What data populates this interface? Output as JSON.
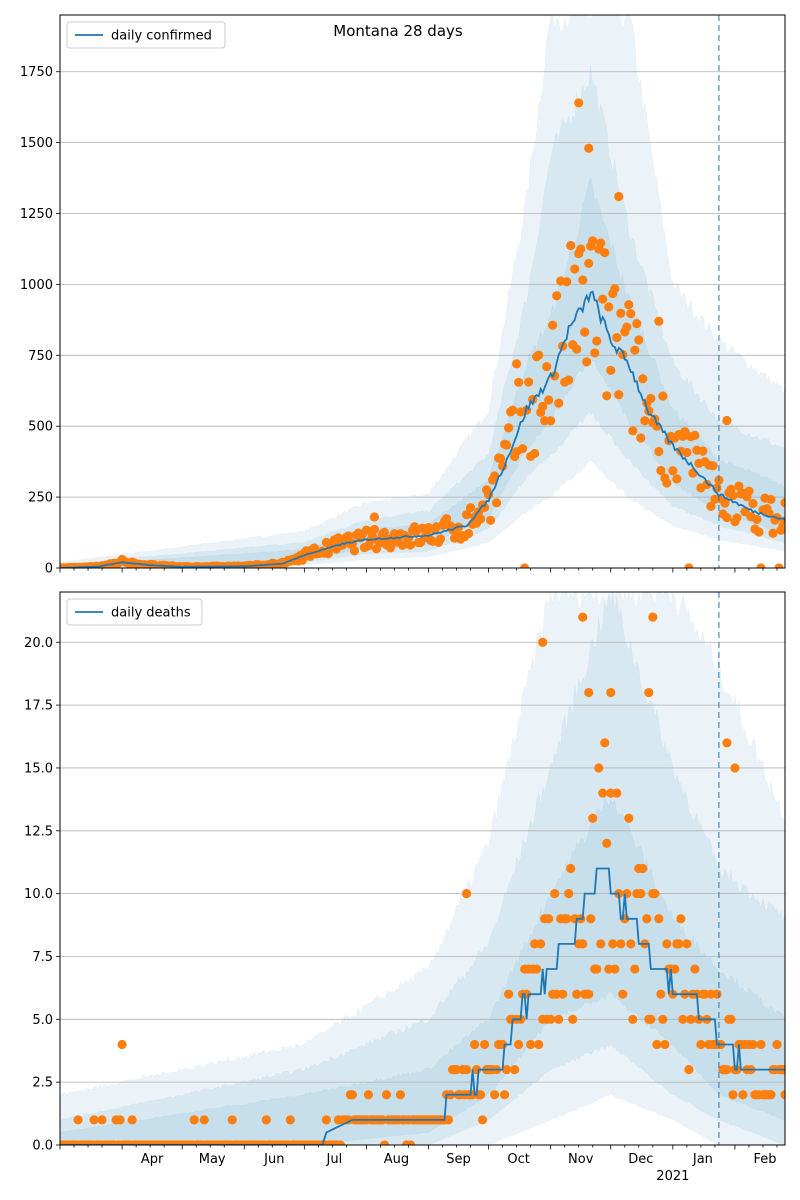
{
  "title": "Montana 28 days",
  "colors": {
    "line": "#1f77b4",
    "points": "#ff7f0e",
    "band": "#1f77b4",
    "grid": "#b0b0b0"
  },
  "x_axis": {
    "start_date": "2020-03-01",
    "end_date": "2021-02-26",
    "month_ticks": [
      {
        "date": "2020-04-01",
        "label": "Apr"
      },
      {
        "date": "2020-05-01",
        "label": "May"
      },
      {
        "date": "2020-06-01",
        "label": "Jun"
      },
      {
        "date": "2020-07-01",
        "label": "Jul"
      },
      {
        "date": "2020-08-01",
        "label": "Aug"
      },
      {
        "date": "2020-09-01",
        "label": "Sep"
      },
      {
        "date": "2020-10-01",
        "label": "Oct"
      },
      {
        "date": "2020-11-01",
        "label": "Nov"
      },
      {
        "date": "2020-12-01",
        "label": "Dec"
      },
      {
        "date": "2021-01-01",
        "label": "Jan"
      },
      {
        "date": "2021-02-01",
        "label": "Feb"
      }
    ],
    "year_label": "2021",
    "forecast_start": "2021-01-24"
  },
  "chart_data": [
    {
      "type": "line",
      "name": "confirmed",
      "legend": "daily confirmed",
      "legend_position": "upper-left",
      "ylim": [
        0,
        1950
      ],
      "yticks": [
        0,
        250,
        500,
        750,
        1000,
        1250,
        1500,
        1750
      ],
      "grid": "y",
      "line_series": [
        {
          "date": "2020-03-01",
          "value": 0
        },
        {
          "date": "2020-03-20",
          "value": 5
        },
        {
          "date": "2020-04-01",
          "value": 20
        },
        {
          "date": "2020-04-15",
          "value": 10
        },
        {
          "date": "2020-05-01",
          "value": 4
        },
        {
          "date": "2020-06-01",
          "value": 6
        },
        {
          "date": "2020-06-20",
          "value": 15
        },
        {
          "date": "2020-07-01",
          "value": 45
        },
        {
          "date": "2020-07-20",
          "value": 85
        },
        {
          "date": "2020-08-01",
          "value": 100
        },
        {
          "date": "2020-08-20",
          "value": 110
        },
        {
          "date": "2020-09-01",
          "value": 115
        },
        {
          "date": "2020-09-20",
          "value": 150
        },
        {
          "date": "2020-10-01",
          "value": 240
        },
        {
          "date": "2020-10-10",
          "value": 380
        },
        {
          "date": "2020-10-20",
          "value": 560
        },
        {
          "date": "2020-11-01",
          "value": 670
        },
        {
          "date": "2020-11-10",
          "value": 840
        },
        {
          "date": "2020-11-18",
          "value": 930
        },
        {
          "date": "2020-11-21",
          "value": 975
        },
        {
          "date": "2020-12-01",
          "value": 800
        },
        {
          "date": "2020-12-10",
          "value": 720
        },
        {
          "date": "2020-12-20",
          "value": 550
        },
        {
          "date": "2021-01-01",
          "value": 430
        },
        {
          "date": "2021-01-12",
          "value": 350
        },
        {
          "date": "2021-01-24",
          "value": 260
        },
        {
          "date": "2021-02-10",
          "value": 200
        },
        {
          "date": "2021-02-26",
          "value": 170
        }
      ],
      "band_levels": [
        {
          "opacity": 0.09,
          "series": [
            {
              "date": "2020-03-01",
              "lo": 0,
              "hi": 20
            },
            {
              "date": "2020-07-01",
              "lo": 10,
              "hi": 130
            },
            {
              "date": "2020-08-01",
              "lo": 30,
              "hi": 230
            },
            {
              "date": "2020-09-01",
              "lo": 40,
              "hi": 260
            },
            {
              "date": "2020-10-01",
              "lo": 90,
              "hi": 560
            },
            {
              "date": "2020-10-20",
              "lo": 200,
              "hi": 1300
            },
            {
              "date": "2020-11-01",
              "lo": 250,
              "hi": 1950
            },
            {
              "date": "2020-11-21",
              "lo": 380,
              "hi": 1950
            },
            {
              "date": "2020-12-10",
              "lo": 250,
              "hi": 1950
            },
            {
              "date": "2021-01-01",
              "lo": 150,
              "hi": 1000
            },
            {
              "date": "2021-01-24",
              "lo": 100,
              "hi": 800
            },
            {
              "date": "2021-02-26",
              "lo": 60,
              "hi": 620
            }
          ]
        },
        {
          "opacity": 0.09,
          "series": [
            {
              "date": "2020-03-01",
              "lo": 0,
              "hi": 12
            },
            {
              "date": "2020-07-01",
              "lo": 20,
              "hi": 90
            },
            {
              "date": "2020-08-01",
              "lo": 50,
              "hi": 170
            },
            {
              "date": "2020-09-01",
              "lo": 60,
              "hi": 200
            },
            {
              "date": "2020-10-01",
              "lo": 140,
              "hi": 400
            },
            {
              "date": "2020-10-20",
              "lo": 320,
              "hi": 950
            },
            {
              "date": "2020-11-01",
              "lo": 400,
              "hi": 1450
            },
            {
              "date": "2020-11-21",
              "lo": 550,
              "hi": 1750
            },
            {
              "date": "2020-12-10",
              "lo": 380,
              "hi": 1200
            },
            {
              "date": "2021-01-01",
              "lo": 220,
              "hi": 720
            },
            {
              "date": "2021-01-24",
              "lo": 150,
              "hi": 520
            },
            {
              "date": "2021-02-26",
              "lo": 90,
              "hi": 420
            }
          ]
        },
        {
          "opacity": 0.09,
          "series": [
            {
              "date": "2020-03-01",
              "lo": 0,
              "hi": 8
            },
            {
              "date": "2020-07-01",
              "lo": 30,
              "hi": 65
            },
            {
              "date": "2020-08-01",
              "lo": 70,
              "hi": 135
            },
            {
              "date": "2020-09-01",
              "lo": 80,
              "hi": 155
            },
            {
              "date": "2020-10-01",
              "lo": 180,
              "hi": 310
            },
            {
              "date": "2020-10-20",
              "lo": 420,
              "hi": 720
            },
            {
              "date": "2020-11-01",
              "lo": 520,
              "hi": 880
            },
            {
              "date": "2020-11-21",
              "lo": 750,
              "hi": 1350
            },
            {
              "date": "2020-12-10",
              "lo": 520,
              "hi": 950
            },
            {
              "date": "2021-01-01",
              "lo": 300,
              "hi": 560
            },
            {
              "date": "2021-01-24",
              "lo": 200,
              "hi": 380
            },
            {
              "date": "2021-02-26",
              "lo": 120,
              "hi": 290
            }
          ]
        }
      ],
      "scatter_sample": [
        {
          "date": "2020-04-01",
          "value": 30
        },
        {
          "date": "2020-08-05",
          "value": 180
        },
        {
          "date": "2020-10-15",
          "value": 720
        },
        {
          "date": "2020-11-15",
          "value": 1640
        },
        {
          "date": "2020-11-20",
          "value": 1480
        },
        {
          "date": "2020-12-05",
          "value": 1310
        },
        {
          "date": "2020-12-25",
          "value": 870
        },
        {
          "date": "2021-01-28",
          "value": 520
        },
        {
          "date": "2021-02-26",
          "value": 230
        }
      ]
    },
    {
      "type": "line",
      "name": "deaths",
      "legend": "daily deaths",
      "legend_position": "upper-left",
      "ylim": [
        0,
        22
      ],
      "yticks": [
        "0.0",
        "2.5",
        "5.0",
        "7.5",
        "10.0",
        "12.5",
        "15.0",
        "17.5",
        "20.0"
      ],
      "grid": "y",
      "line_series": [
        {
          "date": "2020-03-01",
          "value": 0
        },
        {
          "date": "2020-07-10",
          "value": 0
        },
        {
          "date": "2020-07-12",
          "value": 0.5
        },
        {
          "date": "2020-07-25",
          "value": 1
        },
        {
          "date": "2020-09-05",
          "value": 1
        },
        {
          "date": "2020-09-15",
          "value": 2
        },
        {
          "date": "2020-10-05",
          "value": 3
        },
        {
          "date": "2020-10-15",
          "value": 5
        },
        {
          "date": "2020-11-01",
          "value": 7
        },
        {
          "date": "2020-11-10",
          "value": 8
        },
        {
          "date": "2020-11-20",
          "value": 10
        },
        {
          "date": "2020-11-28",
          "value": 11
        },
        {
          "date": "2020-12-10",
          "value": 9
        },
        {
          "date": "2020-12-25",
          "value": 7
        },
        {
          "date": "2021-01-05",
          "value": 6
        },
        {
          "date": "2021-01-20",
          "value": 5
        },
        {
          "date": "2021-01-25",
          "value": 4
        },
        {
          "date": "2021-02-08",
          "value": 3
        },
        {
          "date": "2021-02-26",
          "value": 3
        }
      ],
      "band_levels": [
        {
          "opacity": 0.09,
          "series": [
            {
              "date": "2020-03-01",
              "lo": 0,
              "hi": 2
            },
            {
              "date": "2020-07-01",
              "lo": 0,
              "hi": 4
            },
            {
              "date": "2020-09-01",
              "lo": 0,
              "hi": 7
            },
            {
              "date": "2020-10-01",
              "lo": 0,
              "hi": 12
            },
            {
              "date": "2020-11-01",
              "lo": 1,
              "hi": 22
            },
            {
              "date": "2020-12-01",
              "lo": 2,
              "hi": 22
            },
            {
              "date": "2021-01-01",
              "lo": 1,
              "hi": 22
            },
            {
              "date": "2021-01-24",
              "lo": 0,
              "hi": 19
            },
            {
              "date": "2021-02-26",
              "lo": 0,
              "hi": 13
            }
          ]
        },
        {
          "opacity": 0.09,
          "series": [
            {
              "date": "2020-03-01",
              "lo": 0,
              "hi": 1
            },
            {
              "date": "2020-07-01",
              "lo": 0,
              "hi": 3
            },
            {
              "date": "2020-09-01",
              "lo": 0,
              "hi": 5
            },
            {
              "date": "2020-10-01",
              "lo": 1,
              "hi": 8
            },
            {
              "date": "2020-11-01",
              "lo": 3,
              "hi": 15
            },
            {
              "date": "2020-12-01",
              "lo": 4,
              "hi": 22
            },
            {
              "date": "2021-01-01",
              "lo": 2,
              "hi": 15
            },
            {
              "date": "2021-01-24",
              "lo": 1,
              "hi": 11
            },
            {
              "date": "2021-02-26",
              "lo": 0,
              "hi": 9
            }
          ]
        },
        {
          "opacity": 0.09,
          "series": [
            {
              "date": "2020-03-01",
              "lo": 0,
              "hi": 0.5
            },
            {
              "date": "2020-07-01",
              "lo": 0,
              "hi": 2
            },
            {
              "date": "2020-09-01",
              "lo": 0.5,
              "hi": 3
            },
            {
              "date": "2020-10-01",
              "lo": 2,
              "hi": 5
            },
            {
              "date": "2020-11-01",
              "lo": 5,
              "hi": 10
            },
            {
              "date": "2020-12-01",
              "lo": 6,
              "hi": 14
            },
            {
              "date": "2021-01-01",
              "lo": 4,
              "hi": 9
            },
            {
              "date": "2021-01-24",
              "lo": 2,
              "hi": 7
            },
            {
              "date": "2021-02-26",
              "lo": 1,
              "hi": 5
            }
          ]
        }
      ],
      "scatter_sample": [
        {
          "date": "2020-04-01",
          "value": 4
        },
        {
          "date": "2020-09-20",
          "value": 10
        },
        {
          "date": "2020-10-28",
          "value": 20
        },
        {
          "date": "2020-11-17",
          "value": 21
        },
        {
          "date": "2020-11-20",
          "value": 18
        },
        {
          "date": "2020-12-01",
          "value": 18
        },
        {
          "date": "2020-12-20",
          "value": 18
        },
        {
          "date": "2020-12-22",
          "value": 21
        },
        {
          "date": "2021-01-28",
          "value": 16
        },
        {
          "date": "2021-02-01",
          "value": 15
        }
      ]
    }
  ]
}
